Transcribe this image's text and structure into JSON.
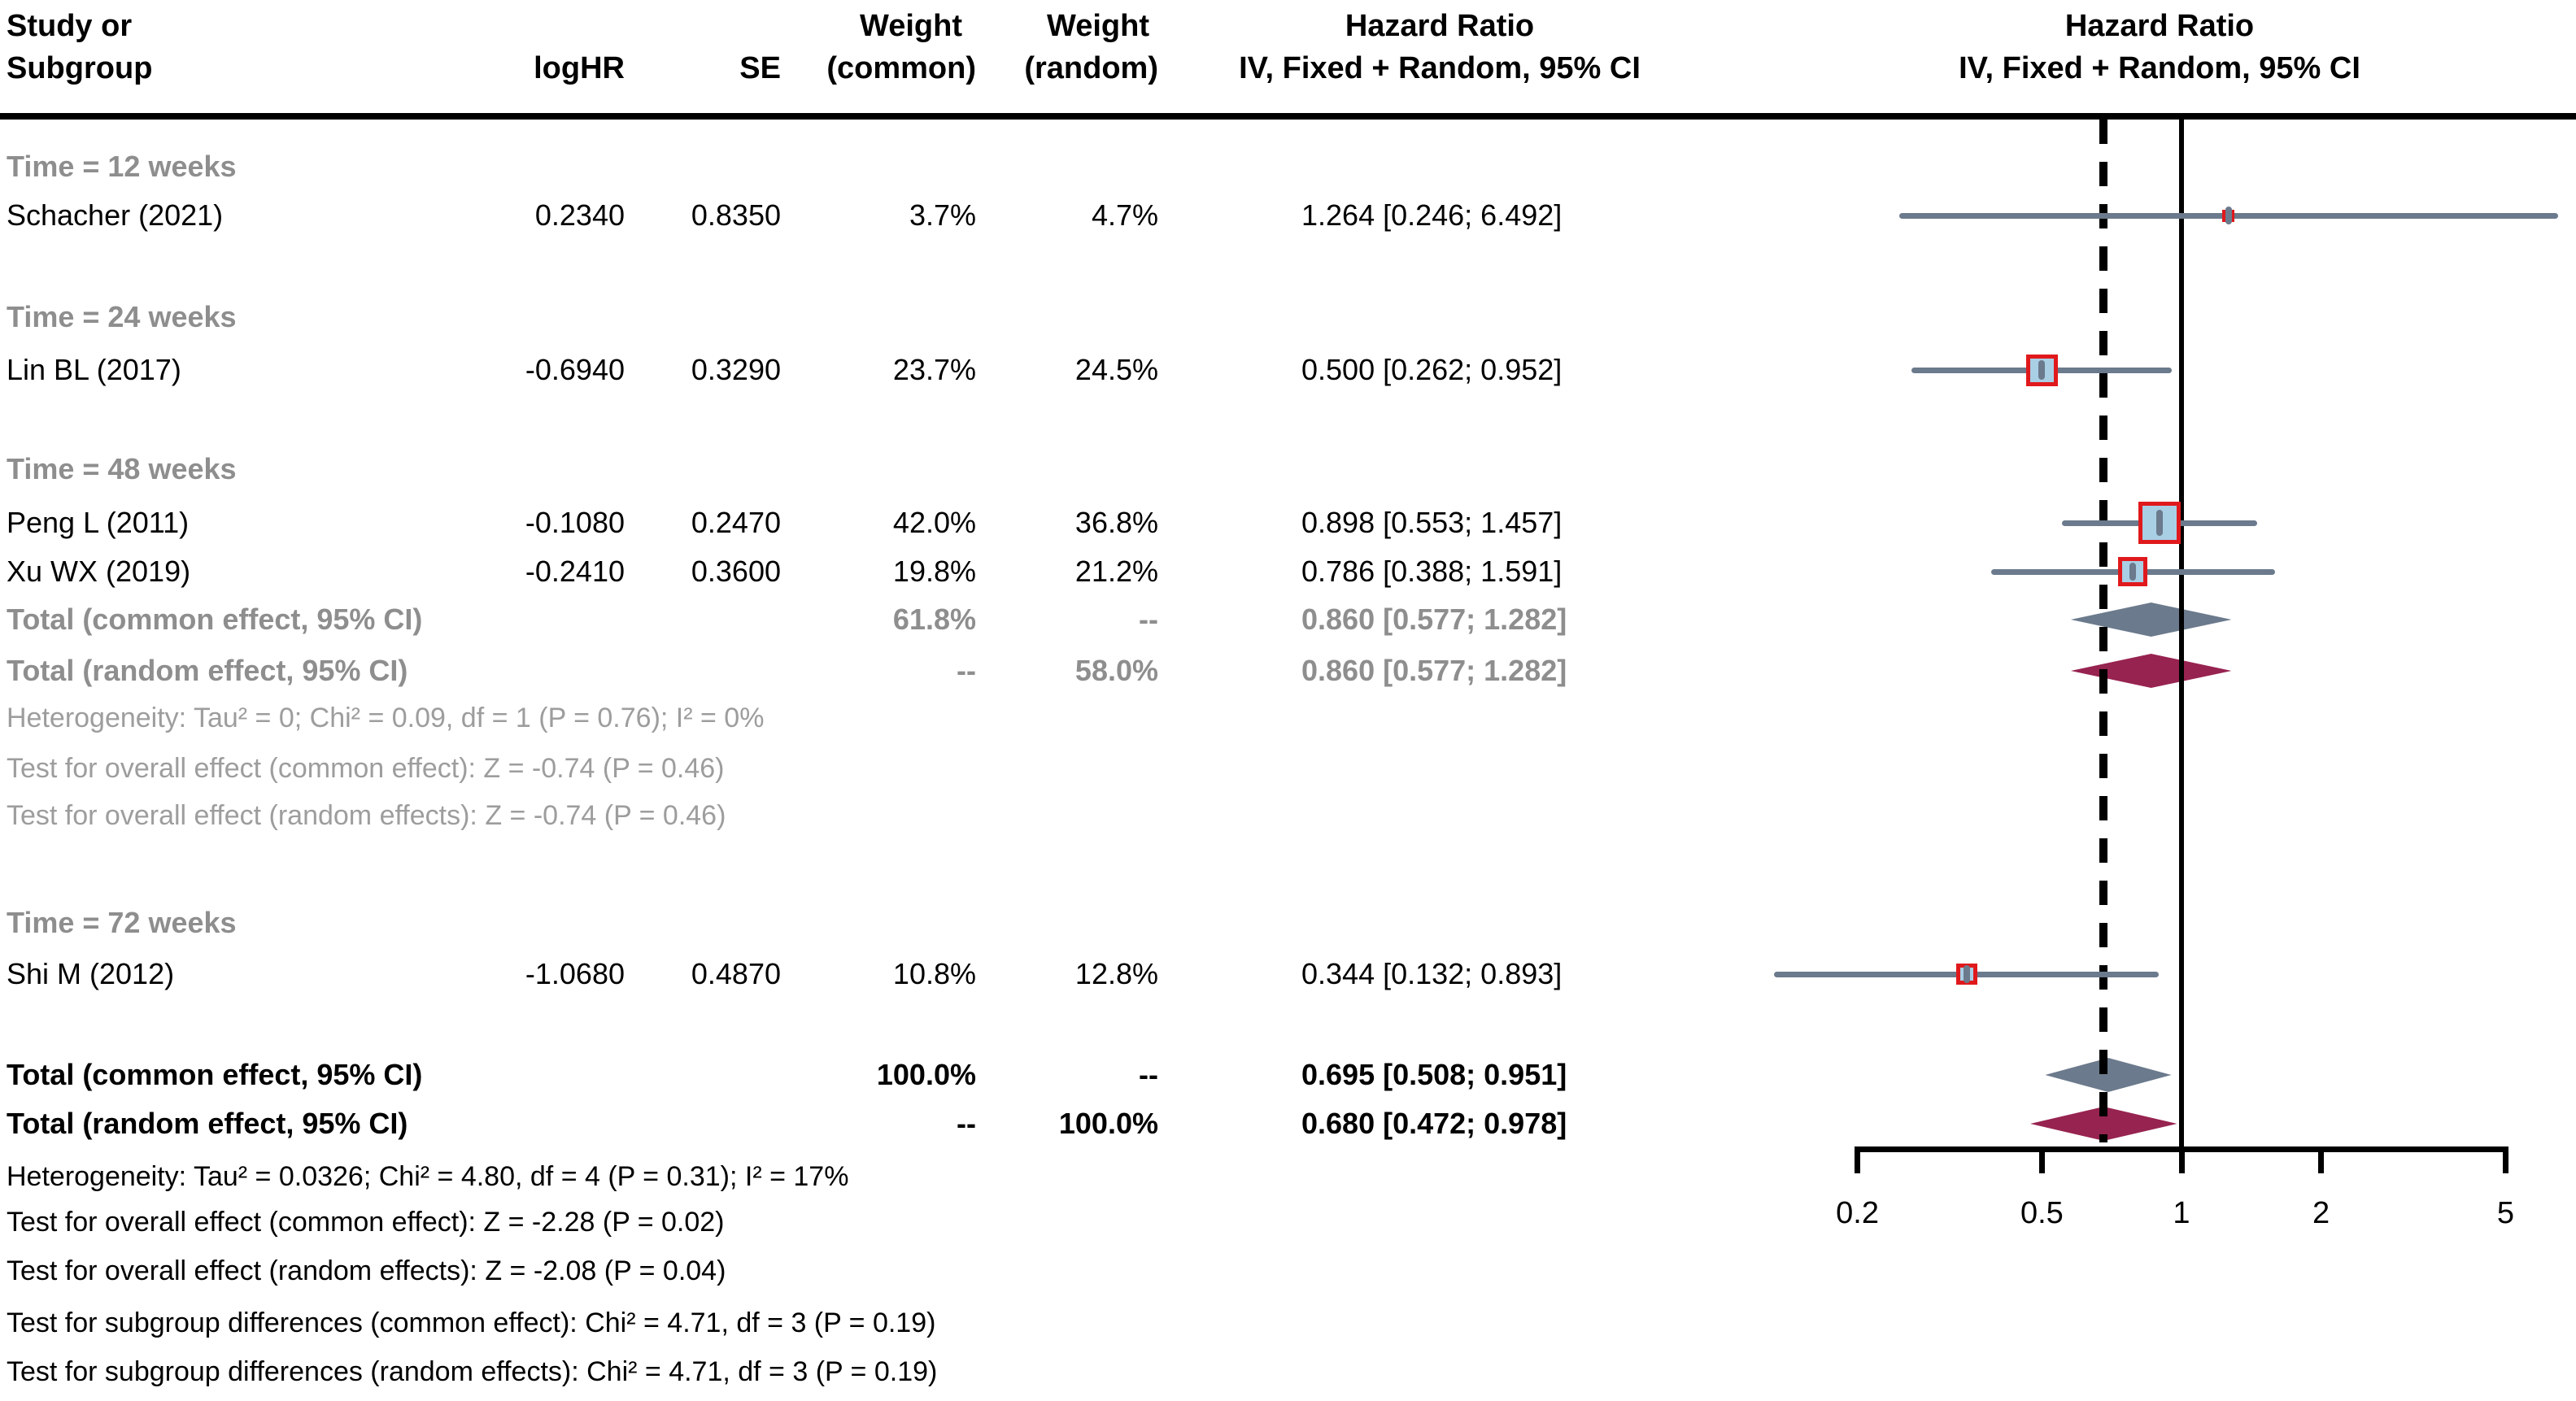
{
  "header": {
    "col_study_1": "Study or",
    "col_study_2": "Subgroup",
    "col_loghr": "logHR",
    "col_se": "SE",
    "col_weight": "Weight",
    "col_common": "(common)",
    "col_random": "(random)",
    "col_hr": "Hazard Ratio",
    "col_model": "IV, Fixed + Random, 95% CI"
  },
  "colors": {
    "ci_line": "#6b7a8c",
    "square_fill": "#a9cfe5",
    "square_border": "#e0191c",
    "diamond_common": "#6b7a8c",
    "diamond_random": "#972350",
    "ref_line": "#000000",
    "summary_line": "#000000",
    "text_gray": "#8e8e8e",
    "stat_gray": "#9d9d9d"
  },
  "chart_data": {
    "type": "forest",
    "x_scale": "log10",
    "ref_line": 1,
    "summary_line": 0.68,
    "axis": {
      "ticks": [
        "0.2",
        "0.5",
        "1",
        "2",
        "5"
      ]
    },
    "rows": [
      {
        "id": "sg12",
        "kind": "subgroup",
        "label": "Time = 12 weeks"
      },
      {
        "id": "schacher",
        "kind": "study",
        "label": "Schacher (2021)",
        "loghr": "0.2340",
        "se": "0.8350",
        "w_common": "3.7%",
        "w_random": "4.7%",
        "hr_text": "1.264 [0.246; 6.492]",
        "hr": 1.264,
        "ci_low": 0.246,
        "ci_high": 6.492,
        "weight": 3.7
      },
      {
        "id": "sg24",
        "kind": "subgroup",
        "label": "Time = 24 weeks"
      },
      {
        "id": "lin",
        "kind": "study",
        "label": "Lin BL (2017)",
        "loghr": "-0.6940",
        "se": "0.3290",
        "w_common": "23.7%",
        "w_random": "24.5%",
        "hr_text": "0.500 [0.262; 0.952]",
        "hr": 0.5,
        "ci_low": 0.262,
        "ci_high": 0.952,
        "weight": 23.7
      },
      {
        "id": "sg48",
        "kind": "subgroup",
        "label": "Time = 48 weeks"
      },
      {
        "id": "peng",
        "kind": "study",
        "label": "Peng L (2011)",
        "loghr": "-0.1080",
        "se": "0.2470",
        "w_common": "42.0%",
        "w_random": "36.8%",
        "hr_text": "0.898 [0.553; 1.457]",
        "hr": 0.898,
        "ci_low": 0.553,
        "ci_high": 1.457,
        "weight": 42.0
      },
      {
        "id": "xu",
        "kind": "study",
        "label": "Xu WX (2019)",
        "loghr": "-0.2410",
        "se": "0.3600",
        "w_common": "19.8%",
        "w_random": "21.2%",
        "hr_text": "0.786 [0.388; 1.591]",
        "hr": 0.786,
        "ci_low": 0.388,
        "ci_high": 1.591,
        "weight": 19.8
      },
      {
        "id": "t48c",
        "kind": "total",
        "model": "common",
        "scope": "subgroup",
        "label": "Total (common effect, 95% CI)",
        "w_common": "61.8%",
        "w_random": "--",
        "hr_text": "0.860 [0.577; 1.282]",
        "hr": 0.86,
        "ci_low": 0.577,
        "ci_high": 1.282
      },
      {
        "id": "t48r",
        "kind": "total",
        "model": "random",
        "scope": "subgroup",
        "label": "Total (random effect, 95% CI)",
        "w_common": "--",
        "w_random": "58.0%",
        "hr_text": "0.860 [0.577; 1.282]",
        "hr": 0.86,
        "ci_low": 0.577,
        "ci_high": 1.282
      },
      {
        "id": "het48",
        "kind": "stat",
        "scope": "subgroup",
        "label": "Heterogeneity: Tau² = 0; Chi² = 0.09, df = 1 (P = 0.76); I² = 0%"
      },
      {
        "id": "test48c",
        "kind": "stat",
        "scope": "subgroup",
        "label": "Test for overall effect (common effect): Z = -0.74 (P = 0.46)"
      },
      {
        "id": "test48r",
        "kind": "stat",
        "scope": "subgroup",
        "label": "Test for overall effect (random effects): Z = -0.74 (P = 0.46)"
      },
      {
        "id": "sg72",
        "kind": "subgroup",
        "label": "Time = 72 weeks"
      },
      {
        "id": "shim",
        "kind": "study",
        "label": "Shi M (2012)",
        "loghr": "-1.0680",
        "se": "0.4870",
        "w_common": "10.8%",
        "w_random": "12.8%",
        "hr_text": "0.344 [0.132; 0.893]",
        "hr": 0.344,
        "ci_low": 0.132,
        "ci_high": 0.893,
        "weight": 10.8
      },
      {
        "id": "totc",
        "kind": "total",
        "model": "common",
        "scope": "overall",
        "label": "Total (common effect, 95% CI)",
        "w_common": "100.0%",
        "w_random": "--",
        "hr_text": "0.695 [0.508; 0.951]",
        "hr": 0.695,
        "ci_low": 0.508,
        "ci_high": 0.951
      },
      {
        "id": "totr",
        "kind": "total",
        "model": "random",
        "scope": "overall",
        "label": "Total (random effect, 95% CI)",
        "w_common": "--",
        "w_random": "100.0%",
        "hr_text": "0.680 [0.472; 0.978]",
        "hr": 0.68,
        "ci_low": 0.472,
        "ci_high": 0.978
      },
      {
        "id": "hetall",
        "kind": "stat",
        "scope": "overall",
        "label": "Heterogeneity: Tau² = 0.0326; Chi² = 4.80, df = 4 (P = 0.31); I² = 17%"
      },
      {
        "id": "testallc",
        "kind": "stat",
        "scope": "overall",
        "label": "Test for overall effect (common effect): Z = -2.28 (P = 0.02)"
      },
      {
        "id": "testallr",
        "kind": "stat",
        "scope": "overall",
        "label": "Test for overall effect (random effects): Z = -2.08 (P = 0.04)"
      },
      {
        "id": "testsgc",
        "kind": "stat",
        "scope": "overall",
        "label": "Test for subgroup differences (common effect): Chi² = 4.71, df = 3 (P = 0.19)"
      },
      {
        "id": "testsgr",
        "kind": "stat",
        "scope": "overall",
        "label": "Test for subgroup differences (random effects): Chi² = 4.71, df = 3 (P = 0.19)"
      }
    ]
  }
}
